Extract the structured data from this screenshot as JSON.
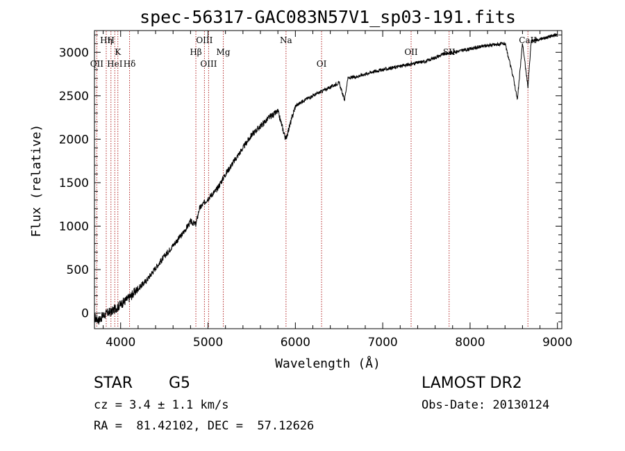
{
  "chart_data": {
    "type": "line",
    "title": "spec-56317-GAC083N57V1_sp03-191.fits",
    "xlabel": "Wavelength (Å)",
    "ylabel": "Flux (relative)",
    "xlim": [
      3700,
      9050
    ],
    "ylim": [
      -180,
      3250
    ],
    "xticks": [
      4000,
      5000,
      6000,
      7000,
      8000,
      9000
    ],
    "yticks": [
      0,
      500,
      1000,
      1500,
      2000,
      2500,
      3000
    ],
    "grid": false,
    "line_color": "#000000",
    "marker_color": "#b22222",
    "series": [
      {
        "x": [
          3700,
          3750,
          3800,
          3850,
          3900,
          3950,
          4000,
          4050,
          4100,
          4200,
          4300,
          4400,
          4500,
          4600,
          4700,
          4800,
          4861,
          4900,
          5000,
          5100,
          5200,
          5300,
          5400,
          5500,
          5600,
          5700,
          5800,
          5890,
          6000,
          6100,
          6200,
          6300,
          6400,
          6500,
          6563,
          6600,
          6700,
          6800,
          6900,
          7000,
          7100,
          7200,
          7300,
          7400,
          7500,
          7600,
          7700,
          7800,
          7900,
          8000,
          8100,
          8200,
          8300,
          8400,
          8498,
          8542,
          8600,
          8662,
          8700,
          8800,
          8900,
          9000
        ],
        "y": [
          -50,
          -80,
          -30,
          0,
          20,
          60,
          100,
          140,
          180,
          280,
          380,
          520,
          650,
          780,
          900,
          1050,
          1020,
          1200,
          1320,
          1420,
          1600,
          1750,
          1900,
          2050,
          2150,
          2250,
          2320,
          2000,
          2380,
          2450,
          2500,
          2550,
          2600,
          2650,
          2450,
          2700,
          2720,
          2750,
          2780,
          2800,
          2820,
          2840,
          2860,
          2880,
          2900,
          2940,
          2980,
          3000,
          3020,
          3040,
          3060,
          3080,
          3090,
          3100,
          2700,
          2450,
          3110,
          2600,
          3130,
          3150,
          3180,
          3200
        ]
      }
    ],
    "lines": [
      {
        "name": "QII",
        "x": 3727,
        "row": 3
      },
      {
        "name": "Hη",
        "x": 3835,
        "row": 1
      },
      {
        "name": "H",
        "x": 3889,
        "row": 1
      },
      {
        "name": "HeI",
        "x": 3933,
        "row": 3
      },
      {
        "name": "K",
        "x": 3968,
        "row": 2
      },
      {
        "name": "Hδ",
        "x": 4102,
        "row": 3
      },
      {
        "name": "Hβ",
        "x": 4861,
        "row": 2
      },
      {
        "name": "OIII",
        "x": 4959,
        "row": 1
      },
      {
        "name": "OIII",
        "x": 5007,
        "row": 3
      },
      {
        "name": "Mg",
        "x": 5175,
        "row": 2
      },
      {
        "name": "Na",
        "x": 5893,
        "row": 1
      },
      {
        "name": "OI",
        "x": 6300,
        "row": 3
      },
      {
        "name": "OII",
        "x": 7325,
        "row": 2
      },
      {
        "name": "SII",
        "x": 7760,
        "row": 2
      },
      {
        "name": "CaII",
        "x": 8662,
        "row": 1
      }
    ]
  },
  "info": {
    "object_class": "STAR",
    "subclass": "G5",
    "survey": "LAMOST DR2",
    "redshift_line": "cz = 3.4 ± 1.1 km/s",
    "obs_date_line": "Obs-Date: 20130124",
    "coords_line": "RA =  81.42102, DEC =  57.12626"
  }
}
